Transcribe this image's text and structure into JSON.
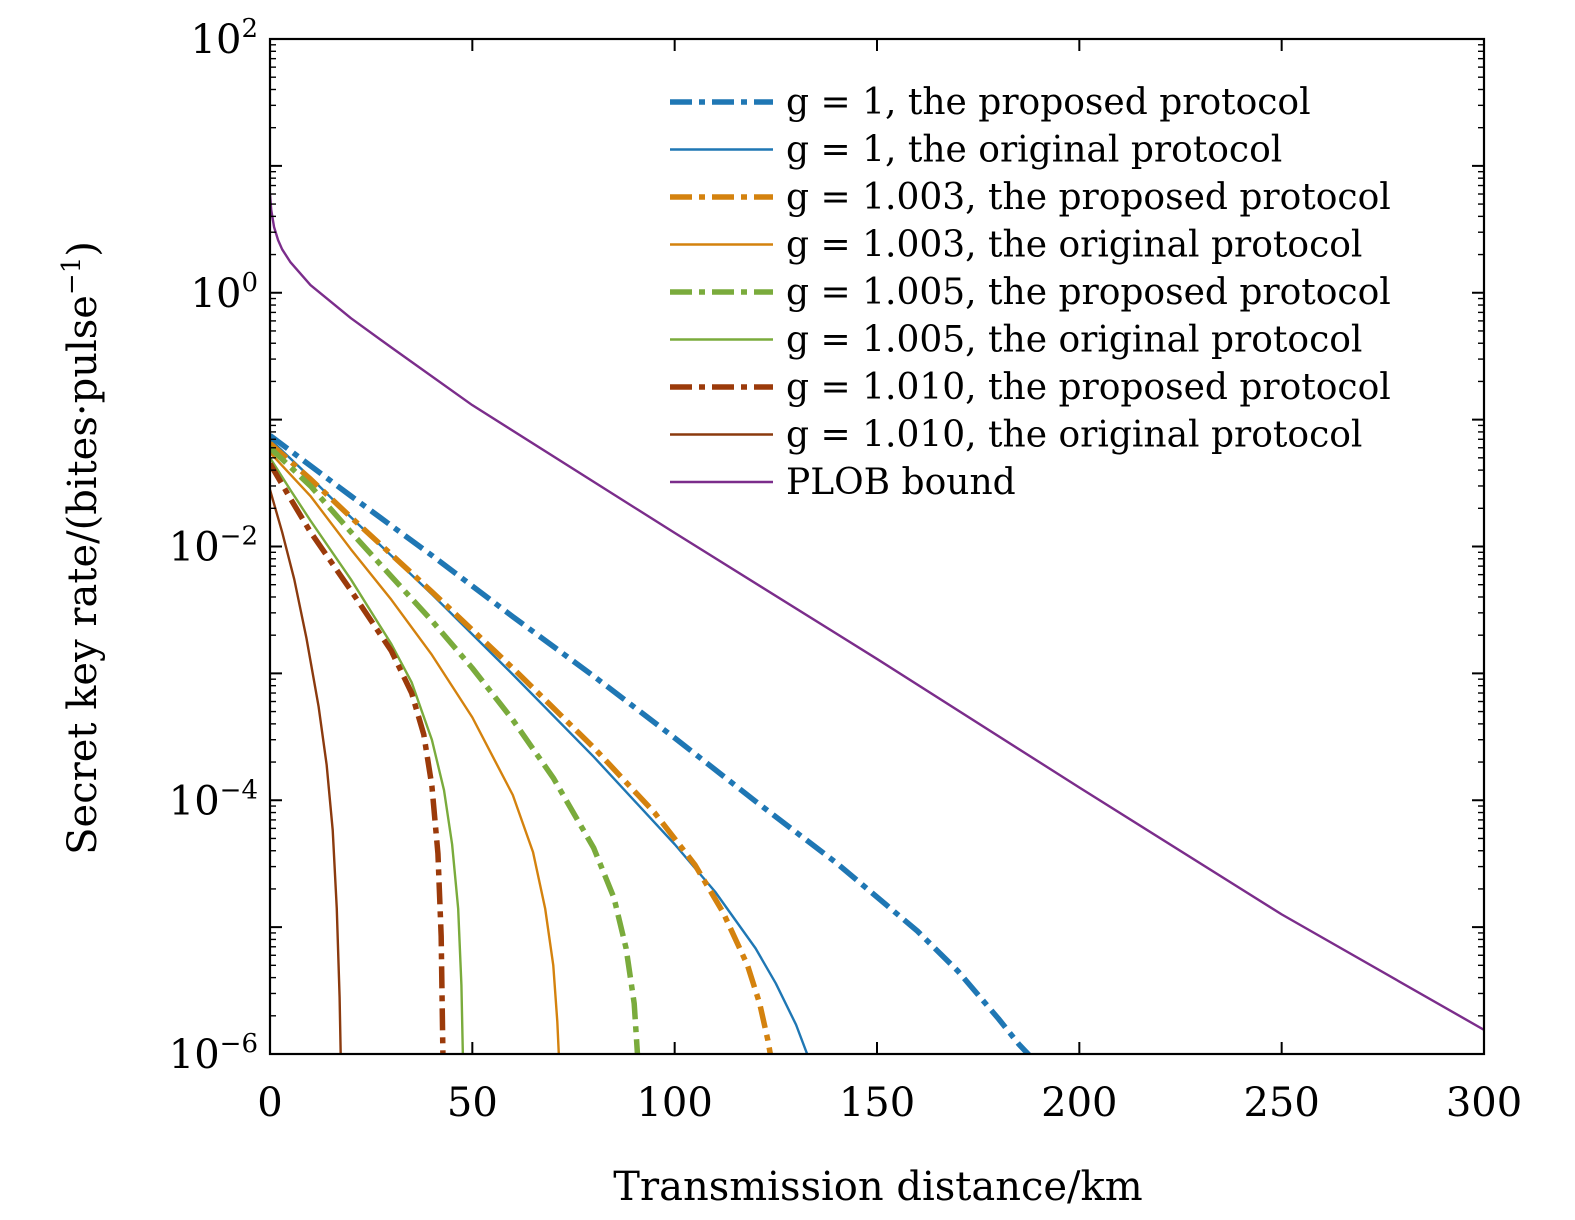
{
  "chart_data": {
    "type": "line",
    "xlabel": "Transmission distance/km",
    "ylabel": "Secret key rate/(bites·pulse",
    "ylabel_sup": "−1",
    "ylabel_close": ")",
    "xlim": [
      0,
      300
    ],
    "ylim": [
      1e-06,
      100
    ],
    "yscale": "log",
    "grid": false,
    "legend_position": "top-right",
    "x_ticks": [
      {
        "value": 0,
        "label": "0"
      },
      {
        "value": 50,
        "label": "50"
      },
      {
        "value": 100,
        "label": "100"
      },
      {
        "value": 150,
        "label": "150"
      },
      {
        "value": 200,
        "label": "200"
      },
      {
        "value": 250,
        "label": "250"
      },
      {
        "value": 300,
        "label": "300"
      }
    ],
    "y_ticks": [
      {
        "value": 1e-06,
        "base": "10",
        "exp": "−6"
      },
      {
        "value": 0.0001,
        "base": "10",
        "exp": "−4"
      },
      {
        "value": 0.01,
        "base": "10",
        "exp": "−2"
      },
      {
        "value": 1,
        "base": "10",
        "exp": "0"
      },
      {
        "value": 100,
        "base": "10",
        "exp": "2"
      }
    ],
    "series": [
      {
        "name": "g = 1, the proposed protocol",
        "color": "#1f77b4",
        "style": "dashdot",
        "x": [
          0,
          20,
          40,
          60,
          80,
          100,
          120,
          140,
          160,
          170,
          180,
          185,
          188,
          191
        ],
        "y": [
          0.075,
          0.025,
          0.0085,
          0.0028,
          0.00095,
          0.00031,
          9.8e-05,
          3.2e-05,
          9.3e-06,
          4.5e-06,
          1.9e-06,
          1.2e-06,
          9.5e-07,
          6.1e-07
        ]
      },
      {
        "name": "g = 1, the original protocol",
        "color": "#1f77b4",
        "style": "solid",
        "x": [
          0,
          10,
          20,
          40,
          60,
          80,
          100,
          110,
          120,
          125,
          130,
          133,
          135,
          136
        ],
        "y": [
          0.07,
          0.035,
          0.017,
          0.0042,
          0.00098,
          0.00022,
          4.5e-05,
          1.9e-05,
          6.8e-06,
          3.6e-06,
          1.7e-06,
          9.5e-07,
          6e-07,
          4.5e-07
        ]
      },
      {
        "name": "g = 1.003, the proposed protocol",
        "color": "#d4820e",
        "style": "dashdot",
        "x": [
          0,
          10,
          20,
          40,
          60,
          80,
          95,
          105,
          112,
          118,
          121,
          123,
          124.5
        ],
        "y": [
          0.065,
          0.034,
          0.017,
          0.0044,
          0.0011,
          0.00026,
          8e-05,
          3.1e-05,
          1.3e-05,
          5e-06,
          2.5e-06,
          1.3e-06,
          7e-07
        ]
      },
      {
        "name": "g = 1.003, the original protocol",
        "color": "#d4820e",
        "style": "solid",
        "x": [
          0,
          10,
          20,
          30,
          40,
          50,
          60,
          65,
          68,
          70,
          71,
          71.8
        ],
        "y": [
          0.055,
          0.025,
          0.0095,
          0.0038,
          0.0014,
          0.00045,
          0.00011,
          3.9e-05,
          1.4e-05,
          5e-06,
          1.8e-06,
          5e-07
        ]
      },
      {
        "name": "g = 1.005, the proposed protocol",
        "color": "#7aab3c",
        "style": "dashdot",
        "x": [
          0,
          10,
          20,
          30,
          40,
          50,
          60,
          70,
          80,
          85,
          88,
          90,
          91
        ],
        "y": [
          0.06,
          0.03,
          0.013,
          0.0058,
          0.0026,
          0.0011,
          0.00043,
          0.00015,
          4.2e-05,
          1.7e-05,
          6.8e-06,
          2.5e-06,
          8e-07
        ]
      },
      {
        "name": "g = 1.005, the original protocol",
        "color": "#7aab3c",
        "style": "solid",
        "x": [
          0,
          5,
          10,
          20,
          30,
          35,
          40,
          43,
          45,
          46.5,
          47.3,
          47.8
        ],
        "y": [
          0.05,
          0.028,
          0.016,
          0.0055,
          0.0017,
          0.00085,
          0.0003,
          0.00012,
          4.5e-05,
          1.4e-05,
          3.5e-06,
          6e-07
        ]
      },
      {
        "name": "g = 1.010, the proposed protocol",
        "color": "#9b3a0a",
        "style": "dashdot",
        "x": [
          0,
          5,
          10,
          20,
          30,
          35,
          38,
          40,
          41.5,
          42.3,
          42.8
        ],
        "y": [
          0.045,
          0.024,
          0.013,
          0.0045,
          0.0015,
          0.0007,
          0.00033,
          0.00013,
          3.8e-05,
          8.5e-06,
          7e-07
        ]
      },
      {
        "name": "g = 1.010, the original protocol",
        "color": "#8b3a0e",
        "style": "solid",
        "x": [
          0,
          3,
          6,
          9,
          12,
          14,
          15.5,
          16.5,
          17.2,
          17.6
        ],
        "y": [
          0.028,
          0.013,
          0.0055,
          0.0019,
          0.00055,
          0.00019,
          5.8e-05,
          1.4e-05,
          2.8e-06,
          6e-07
        ]
      },
      {
        "name": "PLOB bound",
        "color": "#7b2d8b",
        "style": "solid",
        "x": [
          0,
          0.3,
          1,
          2,
          3,
          5,
          10,
          20,
          30,
          50,
          100,
          150,
          200,
          250,
          300
        ],
        "y": [
          6,
          4.5,
          3.3,
          2.6,
          2.2,
          1.75,
          1.15,
          0.63,
          0.37,
          0.13,
          0.0128,
          0.0013,
          0.000126,
          1.26e-05,
          1.55e-06
        ]
      }
    ]
  }
}
